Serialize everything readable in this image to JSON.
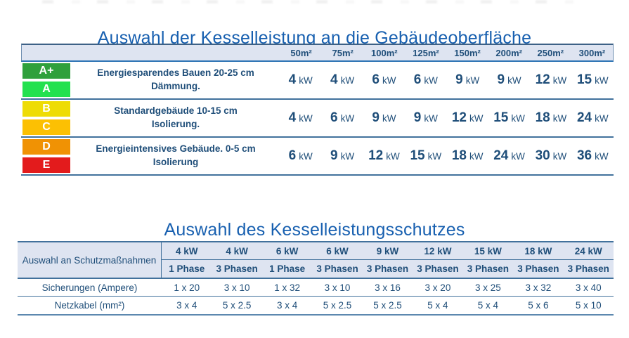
{
  "colors": {
    "title_blue": "#1860B0",
    "text_navy": "#1F4E79",
    "header_bg": "#DEE4F1",
    "border_blue": "#41719C"
  },
  "table1": {
    "title": "Auswahl der Kesselleistung an die Gebäudeoberfläche",
    "area_headers": [
      "50m²",
      "75m²",
      "100m²",
      "125m²",
      "150m²",
      "200m²",
      "250m²",
      "300m²"
    ],
    "unit": "kW",
    "rows": [
      {
        "badges": [
          {
            "label": "A+",
            "color": "#2FA03C"
          },
          {
            "label": "A",
            "color": "#23E14F"
          }
        ],
        "description_line1": "Energiesparendes Bauen 20-25 cm",
        "description_line2": "Dämmung.",
        "values": [
          "4",
          "4",
          "6",
          "6",
          "9",
          "9",
          "12",
          "15"
        ]
      },
      {
        "badges": [
          {
            "label": "B",
            "color": "#EEDC05"
          },
          {
            "label": "C",
            "color": "#FCC003"
          }
        ],
        "description_line1": "Standardgebäude 10-15 cm",
        "description_line2": "Isolierung.",
        "values": [
          "4",
          "6",
          "9",
          "9",
          "12",
          "15",
          "18",
          "24"
        ]
      },
      {
        "badges": [
          {
            "label": "D",
            "color": "#F09204"
          },
          {
            "label": "E",
            "color": "#E31B1C"
          }
        ],
        "description_line1": "Energieintensives Gebäude. 0-5 cm",
        "description_line2": "Isolierung",
        "values": [
          "6",
          "9",
          "12",
          "15",
          "18",
          "24",
          "30",
          "36"
        ]
      }
    ]
  },
  "table2": {
    "title": "Auswahl des Kesselleistungsschutzes",
    "row_header": "Auswahl an Schutzmaßnahmen",
    "fuse_label": "Sicherungen (Ampere)",
    "cable_label": "Netzkabel (mm²)",
    "columns": [
      {
        "power": "4 kW",
        "phase": "1 Phase",
        "fuse": "1 x 20",
        "cable": "3 x 4"
      },
      {
        "power": "4 kW",
        "phase": "3 Phasen",
        "fuse": "3 x 10",
        "cable": "5 x 2.5"
      },
      {
        "power": "6 kW",
        "phase": "1 Phase",
        "fuse": "1 x 32",
        "cable": "3 x 4"
      },
      {
        "power": "6 kW",
        "phase": "3 Phasen",
        "fuse": "3 x 10",
        "cable": "5 x 2.5"
      },
      {
        "power": "9 kW",
        "phase": "3 Phasen",
        "fuse": "3 x 16",
        "cable": "5 x 2.5"
      },
      {
        "power": "12 kW",
        "phase": "3 Phasen",
        "fuse": "3 x 20",
        "cable": "5 x 4"
      },
      {
        "power": "15 kW",
        "phase": "3 Phasen",
        "fuse": "3 x 25",
        "cable": "5 x 4"
      },
      {
        "power": "18 kW",
        "phase": "3 Phasen",
        "fuse": "3 x 32",
        "cable": "5 x 6"
      },
      {
        "power": "24 kW",
        "phase": "3 Phasen",
        "fuse": "3 x 40",
        "cable": "5 x 10"
      }
    ]
  }
}
